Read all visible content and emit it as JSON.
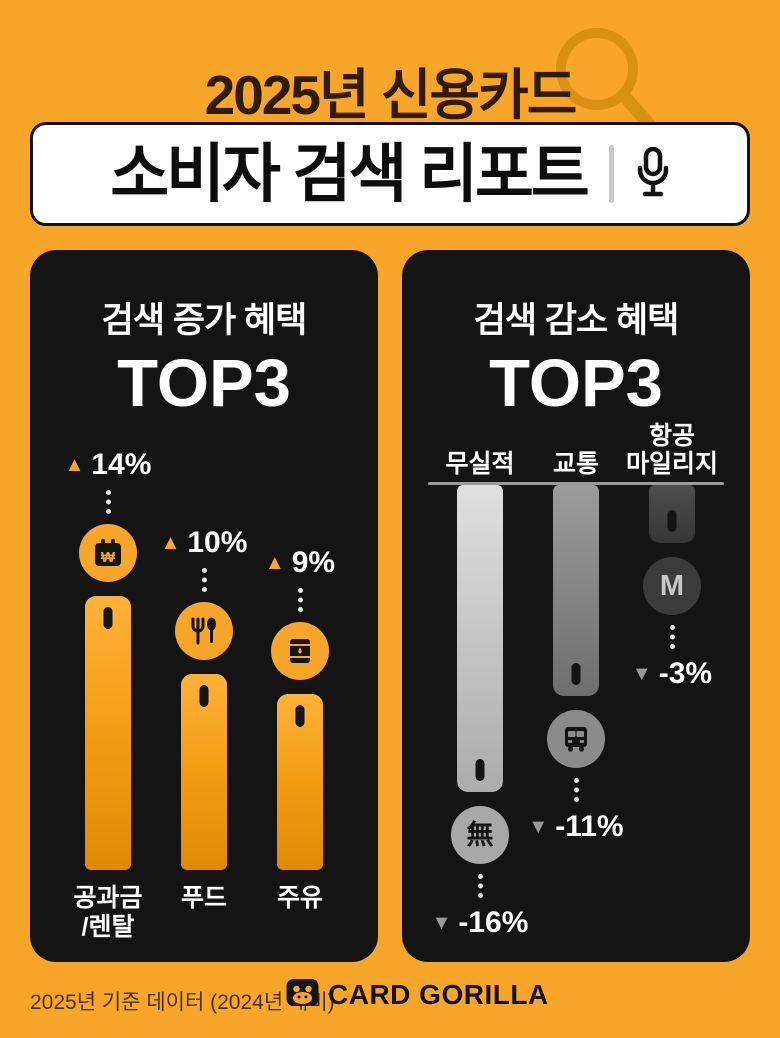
{
  "colors": {
    "background": "#F8A62A",
    "panel": "#141414",
    "bar_increase": "#F8A62A",
    "bar_decrease_1": "#C9C9C9",
    "bar_decrease_2": "#828282",
    "bar_decrease_3": "#3F3F3F",
    "text_dark": "#2F1C03",
    "text_light": "#FFFFFF"
  },
  "header": {
    "title": "2025년 신용카드",
    "report_box": {
      "title": "소비자 검색 리포트",
      "mic_icon": "microphone-icon",
      "magnifier_icon": "magnifier-icon"
    }
  },
  "panels": {
    "increase": {
      "heading": "검색 증가 혜택",
      "top3": "TOP3",
      "bars": [
        {
          "category": "공과금\n/렌탈",
          "arrow": "▲",
          "change": "14%",
          "icon": "calendar-won-icon"
        },
        {
          "category": "푸드",
          "arrow": "▲",
          "change": "10%",
          "icon": "utensils-icon"
        },
        {
          "category": "주유",
          "arrow": "▲",
          "change": "9%",
          "icon": "oil-barrel-icon"
        }
      ]
    },
    "decrease": {
      "heading": "검색 감소 혜택",
      "top3": "TOP3",
      "bars": [
        {
          "category": "무실적",
          "arrow": "▼",
          "change": "-16%",
          "icon": "mu-hanja-icon",
          "glyph": "無"
        },
        {
          "category": "교통",
          "arrow": "▼",
          "change": "-11%",
          "icon": "bus-icon"
        },
        {
          "category": "항공\n마일리지",
          "arrow": "▼",
          "change": "-3%",
          "icon": "letter-m-icon",
          "glyph": "M"
        }
      ]
    }
  },
  "footer": {
    "note": "2025년 기준 데이터 (2024년 대비)",
    "brand": "CARD GORILLA"
  },
  "chart_data": [
    {
      "type": "bar",
      "title": "검색 증가 혜택 TOP3",
      "categories": [
        "공과금/렌탈",
        "푸드",
        "주유"
      ],
      "values": [
        14,
        10,
        9
      ],
      "unit": "%",
      "annotations": [
        "▲14%",
        "▲10%",
        "▲9%"
      ],
      "bar_color": "#F8A62A",
      "direction": "up"
    },
    {
      "type": "bar",
      "title": "검색 감소 혜택 TOP3",
      "categories": [
        "무실적",
        "교통",
        "항공 마일리지"
      ],
      "values": [
        -16,
        -11,
        -3
      ],
      "unit": "%",
      "annotations": [
        "▼-16%",
        "▼-11%",
        "▼-3%"
      ],
      "bar_colors": [
        "#C9C9C9",
        "#828282",
        "#3F3F3F"
      ],
      "direction": "down"
    }
  ]
}
